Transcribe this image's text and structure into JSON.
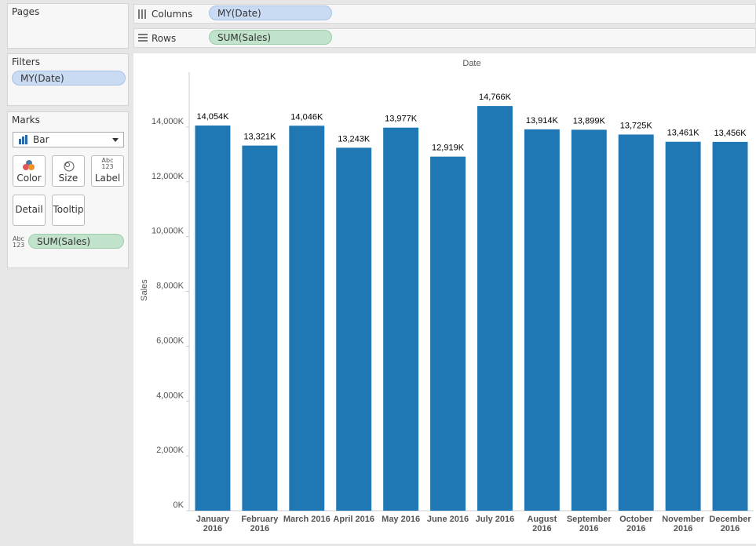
{
  "ui": {
    "pages_title": "Pages",
    "columns_label": "Columns",
    "columns_pill": "MY(Date)",
    "rows_label": "Rows",
    "rows_pill": "SUM(Sales)",
    "filters_title": "Filters",
    "filter_pill": "MY(Date)",
    "marks_title": "Marks",
    "mark_type": "Bar",
    "mark_buttons": [
      "Color",
      "Size",
      "Label",
      "Detail",
      "Tooltip"
    ],
    "text_icon_top": "Abc",
    "text_icon_bottom": "123",
    "marks_pill": "SUM(Sales)"
  },
  "chart_data": {
    "type": "bar",
    "x_label": "Date",
    "y_label": "Sales",
    "categories": [
      "January 2016",
      "February 2016",
      "March 2016",
      "April 2016",
      "May 2016",
      "June 2016",
      "July 2016",
      "August 2016",
      "September 2016",
      "October 2016",
      "November 2016",
      "December 2016"
    ],
    "values": [
      14054,
      13321,
      14046,
      13243,
      13977,
      12919,
      14766,
      13914,
      13899,
      13725,
      13461,
      13456
    ],
    "value_labels": [
      "14,054K",
      "13,321K",
      "14,046K",
      "13,243K",
      "13,977K",
      "12,919K",
      "14,766K",
      "13,914K",
      "13,899K",
      "13,725K",
      "13,461K",
      "13,456K"
    ],
    "color": "#1f77b4",
    "ylim": [
      0,
      16000
    ],
    "yticks": [
      {
        "value": 0,
        "label": "0K"
      },
      {
        "value": 2000,
        "label": "2,000K"
      },
      {
        "value": 4000,
        "label": "4,000K"
      },
      {
        "value": 6000,
        "label": "6,000K"
      },
      {
        "value": 8000,
        "label": "8,000K"
      },
      {
        "value": 10000,
        "label": "10,000K"
      },
      {
        "value": 12000,
        "label": "12,000K"
      },
      {
        "value": 14000,
        "label": "14,000K"
      }
    ]
  }
}
